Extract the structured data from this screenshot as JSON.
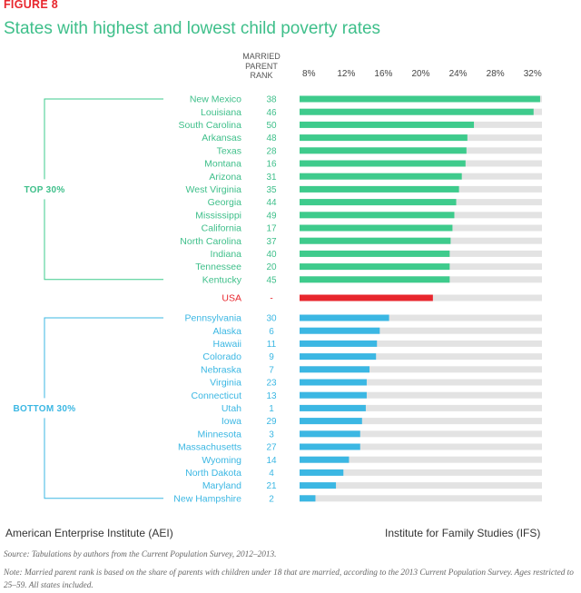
{
  "figure_label": "FIGURE 8",
  "title": "States with highest and lowest child poverty rates",
  "mpr_header": [
    "MARRIED",
    "PARENT",
    "RANK"
  ],
  "source_left": "American Enterprise Institute (AEI)",
  "source_right": "Institute for Family Studies (IFS)",
  "source_note": "Source: Tabulations by authors from the Current Population Survey, 2012–2013.",
  "note": "Note: Married parent rank is based on the share of parents with children under 18 that are married, according to the 2013 Current Population Survey. Ages restricted to 25–59. All states included.",
  "colors": {
    "top": "#3ecb8c",
    "usa": "#e8262d",
    "bottom": "#3bb7e3",
    "track": "#e3e3e3",
    "top_text": "#3ebf8a",
    "bottom_text": "#3bb7e3"
  },
  "chart_data": {
    "type": "bar",
    "orientation": "horizontal",
    "title": "States with highest and lowest child poverty rates",
    "xlim": [
      7,
      33
    ],
    "x_ticks": [
      8,
      12,
      16,
      20,
      24,
      28,
      32
    ],
    "x_tick_labels": [
      "8%",
      "12%",
      "16%",
      "20%",
      "24%",
      "28%",
      "32%"
    ],
    "groups": [
      {
        "name": "TOP 30%",
        "color_key": "top",
        "categories": [
          "New Mexico",
          "Louisiana",
          "South Carolina",
          "Arkansas",
          "Texas",
          "Montana",
          "Arizona",
          "West Virginia",
          "Georgia",
          "Mississippi",
          "California",
          "North Carolina",
          "Indiana",
          "Tennessee",
          "Kentucky"
        ],
        "ranks": [
          "38",
          "46",
          "50",
          "48",
          "28",
          "16",
          "31",
          "35",
          "44",
          "49",
          "17",
          "37",
          "40",
          "20",
          "45"
        ],
        "values": [
          32.8,
          32.1,
          25.7,
          25.0,
          24.9,
          24.8,
          24.4,
          24.1,
          23.8,
          23.6,
          23.4,
          23.2,
          23.1,
          23.1,
          23.1
        ]
      },
      {
        "name": "USA",
        "color_key": "usa",
        "categories": [
          "USA"
        ],
        "ranks": [
          "-"
        ],
        "values": [
          21.3
        ]
      },
      {
        "name": "BOTTOM 30%",
        "color_key": "bottom",
        "categories": [
          "Pennsylvania",
          "Alaska",
          "Hawaii",
          "Colorado",
          "Nebraska",
          "Virginia",
          "Connecticut",
          "Utah",
          "Iowa",
          "Minnesota",
          "Massachusetts",
          "Wyoming",
          "North Dakota",
          "Maryland",
          "New Hampshire"
        ],
        "ranks": [
          "30",
          "6",
          "11",
          "9",
          "7",
          "23",
          "13",
          "1",
          "29",
          "3",
          "27",
          "14",
          "4",
          "21",
          "2"
        ],
        "values": [
          16.6,
          15.6,
          15.3,
          15.2,
          14.5,
          14.2,
          14.2,
          14.1,
          13.7,
          13.5,
          13.5,
          12.3,
          11.7,
          10.9,
          8.7
        ]
      }
    ]
  }
}
